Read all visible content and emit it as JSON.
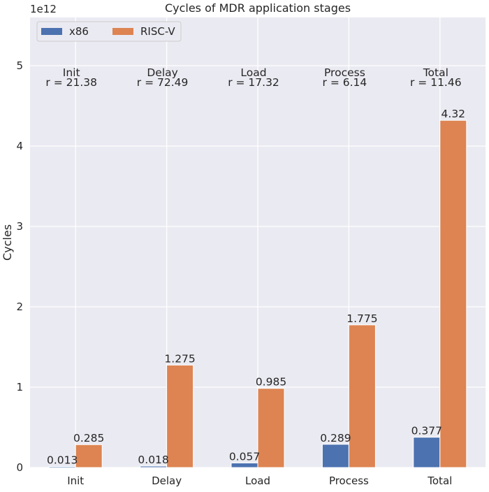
{
  "chart_data": {
    "type": "bar",
    "title": "Cycles of MDR application stages",
    "ylabel": "Cycles",
    "xlabel": "",
    "y_multiplier_label": "1e12",
    "categories": [
      "Init",
      "Delay",
      "Load",
      "Process",
      "Total"
    ],
    "series": [
      {
        "name": "x86",
        "color": "#4c72b0",
        "values": [
          0.013,
          0.018,
          0.057,
          0.289,
          0.377
        ],
        "labels": [
          "0.013",
          "0.018",
          "0.057",
          "0.289",
          "0.377"
        ]
      },
      {
        "name": "RISC-V",
        "color": "#dd8452",
        "values": [
          0.285,
          1.275,
          0.985,
          1.775,
          4.32
        ],
        "labels": [
          "0.285",
          "1.275",
          "0.985",
          "1.775",
          "4.32"
        ]
      }
    ],
    "annotations": [
      {
        "name": "Init",
        "ratio": "r = 21.38"
      },
      {
        "name": "Delay",
        "ratio": "r = 72.49"
      },
      {
        "name": "Load",
        "ratio": "r = 17.32"
      },
      {
        "name": "Process",
        "ratio": "r = 6.14"
      },
      {
        "name": "Total",
        "ratio": "r = 11.46"
      }
    ],
    "yticks": [
      0,
      1,
      2,
      3,
      4,
      5
    ],
    "ylim": [
      0,
      5.6
    ],
    "grid": true,
    "legend_position": "top-left",
    "style": {
      "background": "#eaeaf2",
      "grid_color": "#ffffff"
    }
  }
}
